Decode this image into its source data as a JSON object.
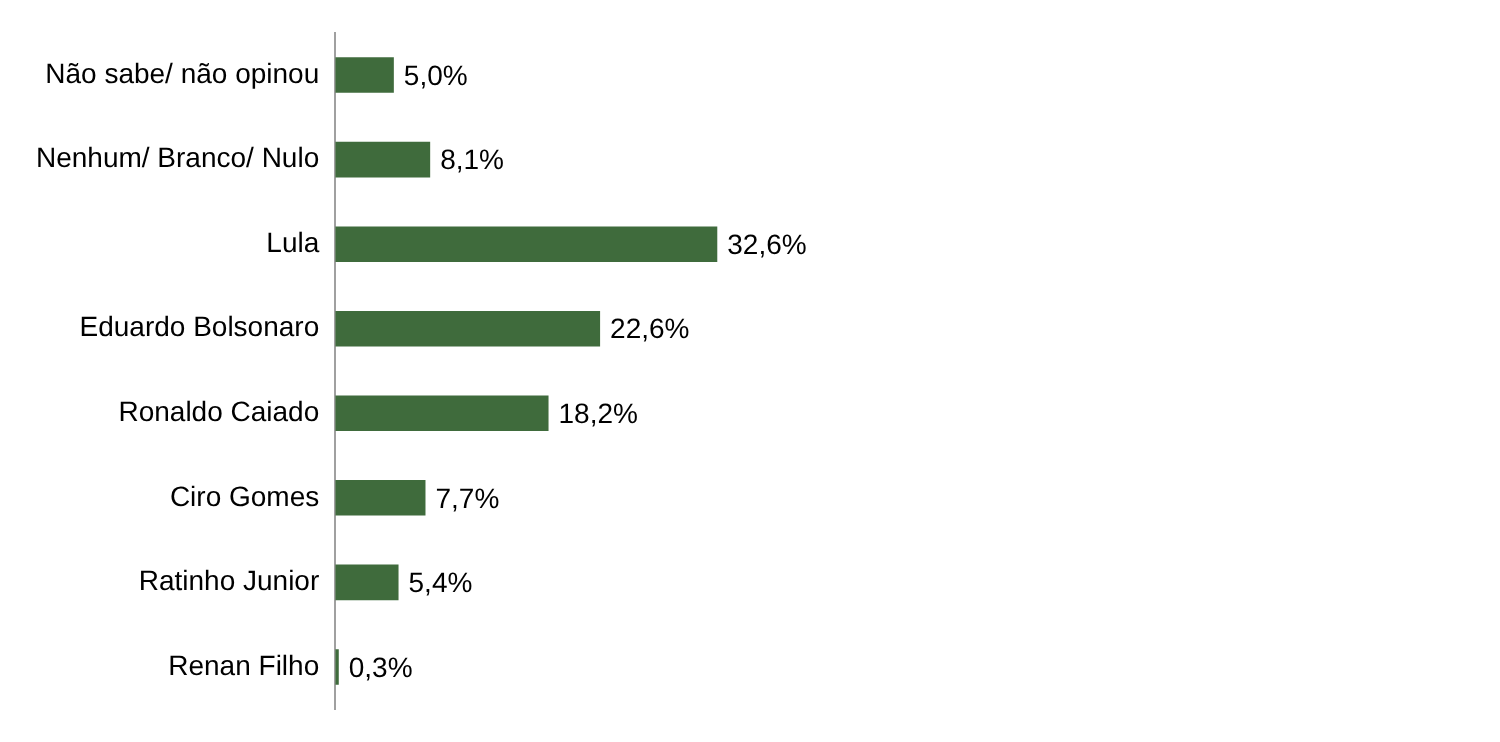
{
  "chart_data": {
    "type": "bar",
    "orientation": "horizontal",
    "categories": [
      "Não sabe/ não opinou",
      "Nenhum/ Branco/ Nulo",
      "Lula",
      "Eduardo Bolsonaro",
      "Ronaldo Caiado",
      "Ciro Gomes",
      "Ratinho Junior",
      "Renan Filho"
    ],
    "values": [
      5.0,
      8.1,
      32.6,
      22.6,
      18.2,
      7.7,
      5.4,
      0.3
    ],
    "value_labels": [
      "5,0%",
      "8,1%",
      "32,6%",
      "22,6%",
      "18,2%",
      "7,7%",
      "5,4%",
      "0,3%"
    ],
    "color": "#3f6b3c",
    "grid": false,
    "legend": false,
    "tick_labels": "y"
  }
}
